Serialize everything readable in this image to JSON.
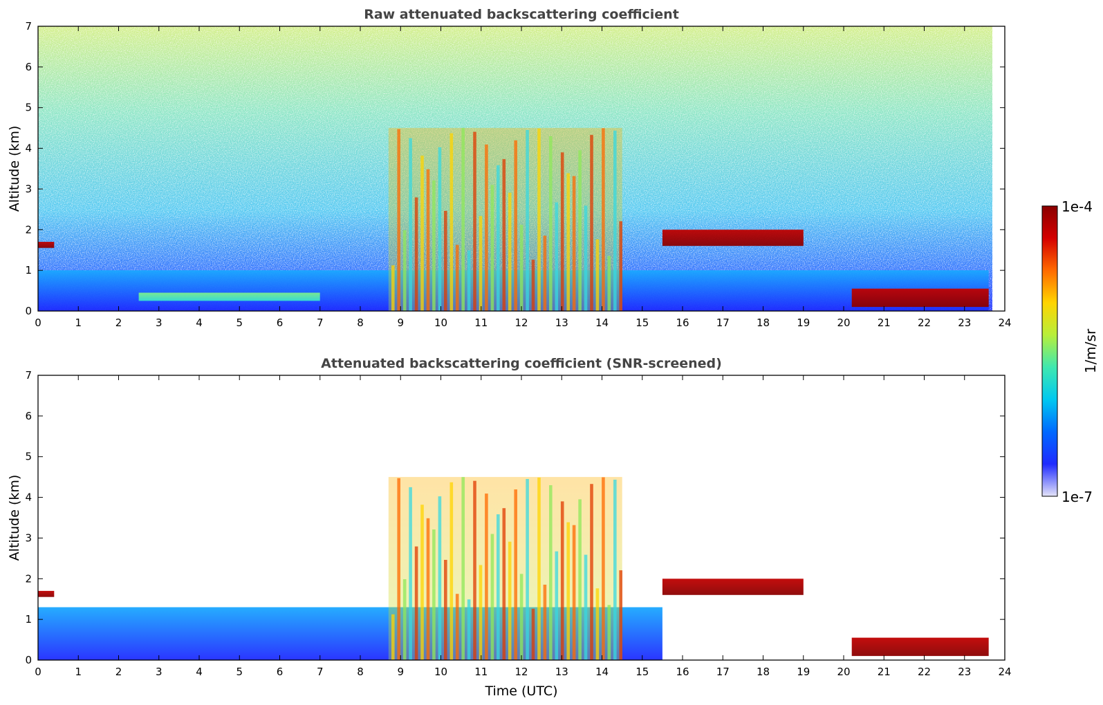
{
  "chart_data": [
    {
      "type": "heatmap",
      "title": "Raw attenuated backscattering coefficient",
      "xlabel": "",
      "ylabel": "Altitude (km)",
      "xlim": [
        0,
        24
      ],
      "ylim": [
        0,
        7
      ],
      "xticks": [
        "0",
        "1",
        "2",
        "3",
        "4",
        "5",
        "6",
        "7",
        "8",
        "9",
        "10",
        "11",
        "12",
        "13",
        "14",
        "15",
        "16",
        "17",
        "18",
        "19",
        "20",
        "21",
        "22",
        "23",
        "24"
      ],
      "yticks": [
        "0",
        "1",
        "2",
        "3",
        "4",
        "5",
        "6",
        "7"
      ],
      "features": [
        {
          "name": "near-surface aerosol layer",
          "x": [
            0,
            23.6
          ],
          "y": [
            0,
            1.0
          ],
          "level": "low"
        },
        {
          "name": "early residual layer",
          "x": [
            0,
            0.4
          ],
          "y": [
            1.55,
            1.7
          ],
          "level": "very high"
        },
        {
          "name": "elevated thin layer",
          "x": [
            2.5,
            7.0
          ],
          "y": [
            0.25,
            0.45
          ],
          "level": "medium"
        },
        {
          "name": "convective plumes",
          "x": [
            8.7,
            14.5
          ],
          "y": [
            0,
            4.5
          ],
          "level": "high"
        },
        {
          "name": "cloud base layer",
          "x": [
            15.5,
            19.0
          ],
          "y": [
            1.6,
            2.0
          ],
          "level": "very high"
        },
        {
          "name": "evening low layer",
          "x": [
            20.2,
            23.6
          ],
          "y": [
            0.1,
            0.55
          ],
          "level": "very high"
        }
      ]
    },
    {
      "type": "heatmap",
      "title": "Attenuated backscattering coefficient (SNR-screened)",
      "xlabel": "Time (UTC)",
      "ylabel": "Altitude (km)",
      "xlim": [
        0,
        24
      ],
      "ylim": [
        0,
        7
      ],
      "xticks": [
        "0",
        "1",
        "2",
        "3",
        "4",
        "5",
        "6",
        "7",
        "8",
        "9",
        "10",
        "11",
        "12",
        "13",
        "14",
        "15",
        "16",
        "17",
        "18",
        "19",
        "20",
        "21",
        "22",
        "23",
        "24"
      ],
      "yticks": [
        "0",
        "1",
        "2",
        "3",
        "4",
        "5",
        "6",
        "7"
      ],
      "features": [
        {
          "name": "screened boundary layer",
          "x": [
            0,
            15.5
          ],
          "y": [
            0,
            1.3
          ],
          "level": "low"
        },
        {
          "name": "early residual layer",
          "x": [
            0,
            0.4
          ],
          "y": [
            1.55,
            1.7
          ],
          "level": "very high"
        },
        {
          "name": "convective plumes",
          "x": [
            8.7,
            14.5
          ],
          "y": [
            0,
            4.5
          ],
          "level": "high"
        },
        {
          "name": "cloud base layer",
          "x": [
            15.5,
            19.0
          ],
          "y": [
            1.6,
            2.0
          ],
          "level": "very high"
        },
        {
          "name": "evening low layer",
          "x": [
            20.2,
            23.6
          ],
          "y": [
            0.1,
            0.55
          ],
          "level": "very high"
        }
      ]
    }
  ],
  "colorbar": {
    "label": "1/m/sr",
    "max_label": "1e-4",
    "min_label": "1e-7",
    "colors": [
      "#e4e4f8",
      "#1f2bff",
      "#0069ff",
      "#00c8f0",
      "#3ee8b0",
      "#b8ef3a",
      "#ffd400",
      "#ff6a00",
      "#d40000",
      "#8a0000"
    ]
  }
}
